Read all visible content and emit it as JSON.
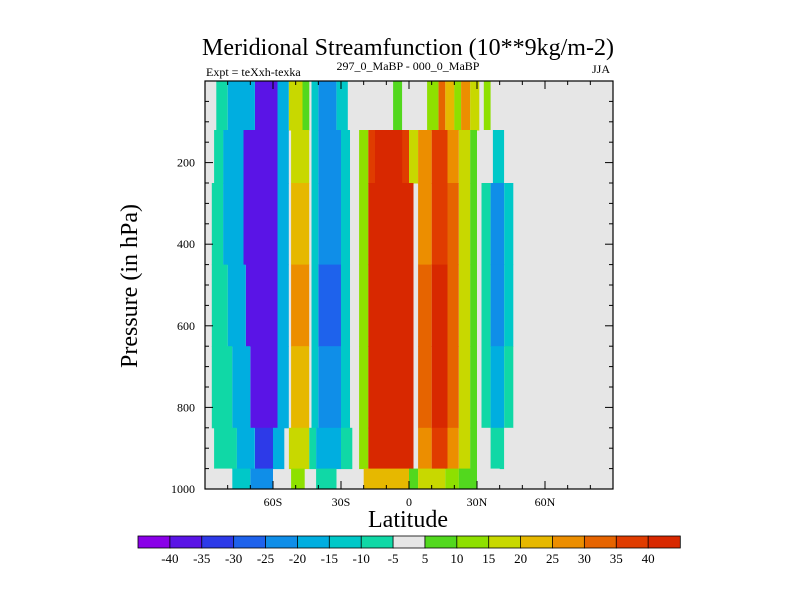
{
  "chart_data": {
    "type": "heatmap",
    "title": "Meridional Streamfunction (10**9kg/m-2)",
    "left_string": "Expt = teXxh-texka",
    "center_string": "297_0_MaBP - 000_0_MaBP",
    "right_string": "JJA",
    "xlabel": "Latitude",
    "ylabel": "Pressure (in hPa)",
    "xlim": [
      -90,
      90
    ],
    "ylim": [
      0,
      1000
    ],
    "y_inverted": true,
    "x_ticks": [
      {
        "value": -60,
        "label": "60S"
      },
      {
        "value": -30,
        "label": "30S"
      },
      {
        "value": 0,
        "label": "0"
      },
      {
        "value": 30,
        "label": "30N"
      },
      {
        "value": 60,
        "label": "60N"
      }
    ],
    "y_ticks": [
      {
        "value": 200,
        "label": "200"
      },
      {
        "value": 400,
        "label": "400"
      },
      {
        "value": 600,
        "label": "600"
      },
      {
        "value": 800,
        "label": "800"
      },
      {
        "value": 1000,
        "label": "1000"
      }
    ],
    "colorbar": {
      "labels": [
        "-40",
        "-35",
        "-30",
        "-25",
        "-20",
        "-15",
        "-10",
        "-5",
        "5",
        "10",
        "15",
        "20",
        "25",
        "30",
        "35",
        "40"
      ],
      "colors": [
        "#8a00e8",
        "#5a14e6",
        "#2d3ae8",
        "#1e62ec",
        "#0f8ee8",
        "#00aee0",
        "#00c8c8",
        "#10d8a6",
        "#e6e6e6",
        "#52d81e",
        "#8ee000",
        "#c8d800",
        "#e6b800",
        "#ec8e00",
        "#e66400",
        "#e03c00",
        "#d82800"
      ]
    },
    "cells_note": "approximate field: each cell [level, lat_min, lat_max, value]",
    "cells": [
      [
        0,
        -68,
        -58,
        -40
      ],
      [
        0,
        -80,
        -68,
        -20
      ],
      [
        0,
        -85,
        -80,
        -10
      ],
      [
        0,
        -58,
        -53,
        -20
      ],
      [
        0,
        -53,
        -47,
        15
      ],
      [
        0,
        -47,
        -44,
        5
      ],
      [
        0,
        -40,
        -32,
        -25
      ],
      [
        0,
        -43,
        -40,
        -15
      ],
      [
        0,
        -32,
        -27,
        -15
      ],
      [
        0,
        -7,
        -3,
        5
      ],
      [
        0,
        -3,
        2,
        -5
      ],
      [
        0,
        8,
        13,
        10
      ],
      [
        0,
        13,
        16,
        30
      ],
      [
        0,
        16,
        20,
        20
      ],
      [
        0,
        20,
        23,
        10
      ],
      [
        0,
        23,
        27,
        25
      ],
      [
        0,
        27,
        31,
        15
      ],
      [
        0,
        33,
        36,
        10
      ],
      [
        1,
        -73,
        -58,
        -40
      ],
      [
        1,
        -82,
        -73,
        -20
      ],
      [
        1,
        -86,
        -82,
        -10
      ],
      [
        1,
        -58,
        -53,
        -20
      ],
      [
        1,
        -52,
        -44,
        15
      ],
      [
        1,
        -40,
        -30,
        -25
      ],
      [
        1,
        -43,
        -40,
        -15
      ],
      [
        1,
        -30,
        -26,
        -15
      ],
      [
        1,
        -26,
        -23,
        -5
      ],
      [
        1,
        -18,
        0,
        35
      ],
      [
        1,
        -15,
        -3,
        40
      ],
      [
        1,
        -22,
        -18,
        10
      ],
      [
        1,
        0,
        4,
        15
      ],
      [
        1,
        4,
        10,
        25
      ],
      [
        1,
        10,
        17,
        35
      ],
      [
        1,
        17,
        22,
        25
      ],
      [
        1,
        22,
        27,
        15
      ],
      [
        1,
        27,
        30,
        5
      ],
      [
        1,
        32,
        37,
        -5
      ],
      [
        1,
        37,
        42,
        -15
      ],
      [
        1,
        42,
        45,
        -5
      ],
      [
        2,
        -73,
        -58,
        -40
      ],
      [
        2,
        -82,
        -73,
        -20
      ],
      [
        2,
        -87,
        -82,
        -10
      ],
      [
        2,
        -58,
        -53,
        -20
      ],
      [
        2,
        -52,
        -44,
        20
      ],
      [
        2,
        -40,
        -30,
        -25
      ],
      [
        2,
        -43,
        -40,
        -15
      ],
      [
        2,
        -30,
        -26,
        -15
      ],
      [
        2,
        -26,
        -23,
        -5
      ],
      [
        2,
        -18,
        2,
        40
      ],
      [
        2,
        -22,
        -18,
        10
      ],
      [
        2,
        4,
        10,
        25
      ],
      [
        2,
        10,
        17,
        35
      ],
      [
        2,
        17,
        22,
        30
      ],
      [
        2,
        22,
        27,
        15
      ],
      [
        2,
        27,
        30,
        5
      ],
      [
        2,
        32,
        36,
        -10
      ],
      [
        2,
        36,
        42,
        -25
      ],
      [
        2,
        42,
        46,
        -15
      ],
      [
        3,
        -72,
        -58,
        -40
      ],
      [
        3,
        -80,
        -72,
        -20
      ],
      [
        3,
        -87,
        -80,
        -10
      ],
      [
        3,
        -58,
        -53,
        -20
      ],
      [
        3,
        -52,
        -44,
        25
      ],
      [
        3,
        -40,
        -30,
        -30
      ],
      [
        3,
        -43,
        -40,
        -15
      ],
      [
        3,
        -30,
        -26,
        -15
      ],
      [
        3,
        -26,
        -23,
        -5
      ],
      [
        3,
        -18,
        2,
        40
      ],
      [
        3,
        -22,
        -18,
        10
      ],
      [
        3,
        4,
        10,
        30
      ],
      [
        3,
        10,
        17,
        40
      ],
      [
        3,
        17,
        22,
        30
      ],
      [
        3,
        22,
        27,
        15
      ],
      [
        3,
        27,
        30,
        5
      ],
      [
        3,
        32,
        36,
        -10
      ],
      [
        3,
        36,
        42,
        -25
      ],
      [
        3,
        42,
        46,
        -15
      ],
      [
        4,
        -70,
        -58,
        -40
      ],
      [
        4,
        -78,
        -70,
        -20
      ],
      [
        4,
        -87,
        -78,
        -10
      ],
      [
        4,
        -58,
        -53,
        -20
      ],
      [
        4,
        -52,
        -44,
        20
      ],
      [
        4,
        -40,
        -30,
        -25
      ],
      [
        4,
        -43,
        -40,
        -15
      ],
      [
        4,
        -30,
        -26,
        -15
      ],
      [
        4,
        -26,
        -23,
        -5
      ],
      [
        4,
        -18,
        2,
        40
      ],
      [
        4,
        -22,
        -18,
        10
      ],
      [
        4,
        4,
        10,
        30
      ],
      [
        4,
        10,
        17,
        40
      ],
      [
        4,
        17,
        22,
        30
      ],
      [
        4,
        22,
        27,
        15
      ],
      [
        4,
        27,
        30,
        5
      ],
      [
        4,
        32,
        36,
        -10
      ],
      [
        4,
        36,
        42,
        -20
      ],
      [
        4,
        42,
        46,
        -10
      ],
      [
        5,
        -68,
        -60,
        -35
      ],
      [
        5,
        -76,
        -68,
        -20
      ],
      [
        5,
        -86,
        -76,
        -10
      ],
      [
        5,
        -60,
        -55,
        -20
      ],
      [
        5,
        -53,
        -44,
        15
      ],
      [
        5,
        -41,
        -30,
        -20
      ],
      [
        5,
        -44,
        -41,
        -10
      ],
      [
        5,
        -30,
        -25,
        -10
      ],
      [
        5,
        -18,
        2,
        40
      ],
      [
        5,
        -22,
        -18,
        10
      ],
      [
        5,
        4,
        10,
        25
      ],
      [
        5,
        10,
        17,
        35
      ],
      [
        5,
        17,
        22,
        25
      ],
      [
        5,
        22,
        27,
        15
      ],
      [
        5,
        27,
        30,
        5
      ],
      [
        5,
        32,
        36,
        -5
      ],
      [
        5,
        36,
        42,
        -10
      ],
      [
        5,
        42,
        46,
        -5
      ],
      [
        6,
        -70,
        -60,
        -25
      ],
      [
        6,
        -78,
        -70,
        -15
      ],
      [
        6,
        -86,
        -78,
        -5
      ],
      [
        6,
        -52,
        -46,
        10
      ],
      [
        6,
        -41,
        -32,
        -10
      ],
      [
        6,
        -20,
        0,
        20
      ],
      [
        6,
        0,
        4,
        5
      ],
      [
        6,
        4,
        16,
        15
      ],
      [
        6,
        16,
        22,
        10
      ],
      [
        6,
        22,
        30,
        5
      ],
      [
        6,
        34,
        40,
        -5
      ]
    ]
  }
}
